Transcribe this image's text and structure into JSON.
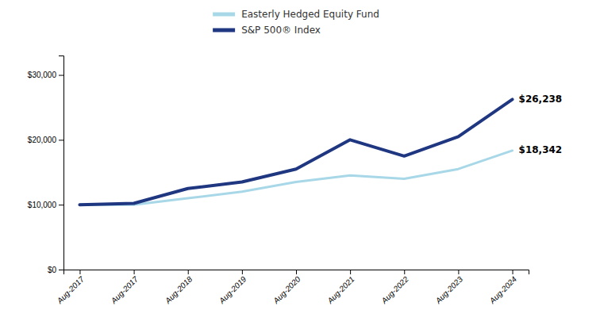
{
  "chart_data": {
    "type": "line",
    "categories": [
      "Aug-2017",
      "Aug-2017",
      "Aug-2018",
      "Aug-2019",
      "Aug-2020",
      "Aug-2021",
      "Aug-2022",
      "Aug-2023",
      "Aug-2024"
    ],
    "series": [
      {
        "name": "Easterly Hedged Equity Fund",
        "color": "#a8d8e8",
        "values": [
          10000,
          10000,
          11000,
          12000,
          13500,
          14500,
          14000,
          15500,
          18342
        ]
      },
      {
        "name": "S&P 500® Index",
        "color": "#1f3680",
        "values": [
          10000,
          10200,
          12500,
          13500,
          15500,
          20000,
          17500,
          20500,
          26238
        ]
      }
    ],
    "annotations": [
      {
        "text": "$26,238",
        "value": 26238
      },
      {
        "text": "$18,342",
        "value": 18342
      }
    ],
    "ylim": [
      0,
      33000
    ],
    "yticks": [
      {
        "value": 0,
        "label": "$0"
      },
      {
        "value": 10000,
        "label": "$10,000"
      },
      {
        "value": 20000,
        "label": "$20,000"
      },
      {
        "value": 30000,
        "label": "$30,000"
      }
    ],
    "grid": false,
    "legend": "top"
  }
}
